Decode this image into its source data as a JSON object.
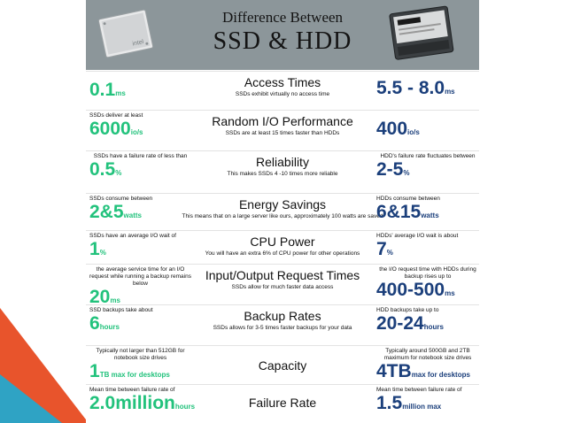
{
  "header": {
    "line1": "Difference Between",
    "line2": "SSD & HDD"
  },
  "rows": [
    {
      "title": "Access Times",
      "subtitle": "SSDs exhibit virtually no access time",
      "ssd": {
        "note": "",
        "value": "0.1",
        "unit": "ms"
      },
      "hdd": {
        "note": "",
        "value": "5.5 - 8.0",
        "unit": "ms"
      }
    },
    {
      "title": "Random I/O Performance",
      "subtitle": "SSDs are at least 15 times faster than HDDs",
      "ssd": {
        "note": "SSDs deliver at least",
        "value": "6000",
        "unit": "io/s"
      },
      "hdd": {
        "note": "",
        "value": "400",
        "unit": "io/s"
      }
    },
    {
      "title": "Reliability",
      "subtitle": "This makes SSDs 4 -10 times more reliable",
      "ssd": {
        "note": "SSDs have a failure rate of less than",
        "value": "0.5",
        "unit": "%"
      },
      "hdd": {
        "note": "HDD's failure rate fluctuates between",
        "value": "2-5",
        "unit": "%"
      }
    },
    {
      "title": "Energy Savings",
      "subtitle": "This means that on a large server like ours, approximately 100 watts are saved",
      "ssd": {
        "note": "SSDs consume between",
        "value": "2&5",
        "unit": "watts"
      },
      "hdd": {
        "note": "HDDs consume between",
        "value": "6&15",
        "unit": "watts"
      }
    },
    {
      "title": "CPU Power",
      "subtitle": "You will have an extra 6% of CPU power for other operations",
      "ssd": {
        "note": "SSDs have an average I/O wait of",
        "value": "1",
        "unit": "%"
      },
      "hdd": {
        "note": "HDDs' average I/O wait is about",
        "value": "7",
        "unit": "%"
      }
    },
    {
      "title": "Input/Output Request Times",
      "subtitle": "SSDs allow for much faster data access",
      "ssd": {
        "note": "the average service time for an I/O request while running a backup remains below",
        "value": "20",
        "unit": "ms"
      },
      "hdd": {
        "note": "the I/O request time with HDDs during backup rises up to",
        "value": "400-500",
        "unit": "ms"
      }
    },
    {
      "title": "Backup Rates",
      "subtitle": "SSDs allows for 3-5 times faster backups for your data",
      "ssd": {
        "note": "SSD backups take about",
        "value": "6",
        "unit": "hours"
      },
      "hdd": {
        "note": "HDD backups take up to",
        "value": "20-24",
        "unit": "hours"
      }
    },
    {
      "title": "Capacity",
      "subtitle": "",
      "ssd": {
        "note": "Typically not larger than 512GB for notebook size drives",
        "value": "1",
        "unit": "TB max for desktops"
      },
      "hdd": {
        "note": "Typically around 500GB and 2TB maximum for notebook size drives",
        "value": "4TB",
        "unit": "max for desktops"
      }
    },
    {
      "title": "Failure Rate",
      "subtitle": "",
      "ssd": {
        "note": "Mean time between failure rate of",
        "value": "2.0million",
        "unit": "hours"
      },
      "hdd": {
        "note": "Mean time between failure rate of",
        "value": "1.5",
        "unit": "million max"
      }
    }
  ],
  "colors": {
    "ssd_value": "#22c27c",
    "hdd_value": "#1b3f7b",
    "header_bg": "#8c969a",
    "slide_orange": "#e8542c",
    "slide_teal": "#2fa3c4"
  },
  "icons": {
    "left": "ssd-drive-image",
    "right": "hdd-drive-image"
  }
}
